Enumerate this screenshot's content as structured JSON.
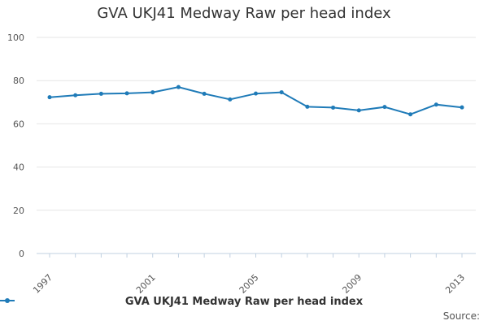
{
  "chart_data": {
    "type": "line",
    "title": "GVA UKJ41 Medway Raw per head index",
    "x": [
      1997,
      1998,
      1999,
      2000,
      2001,
      2002,
      2003,
      2004,
      2005,
      2006,
      2007,
      2008,
      2009,
      2010,
      2011,
      2012,
      2013
    ],
    "x_tick_labels": [
      "1997",
      "2001",
      "2005",
      "2009",
      "2013"
    ],
    "series": [
      {
        "name": "GVA UKJ41 Medway Raw per head index",
        "color": "#1f7bb8",
        "values": [
          72.3,
          73.2,
          73.9,
          74.1,
          74.6,
          77.0,
          73.9,
          71.3,
          74.0,
          74.6,
          67.9,
          67.5,
          66.2,
          67.8,
          64.4,
          68.9,
          67.6
        ]
      }
    ],
    "y_ticks": [
      0,
      20,
      40,
      60,
      80,
      100
    ],
    "ylim": [
      0,
      100
    ],
    "xlabel": "",
    "ylabel": "",
    "grid": true,
    "legend_position": "bottom-center"
  },
  "legend": {
    "label": "GVA UKJ41 Medway Raw per head index"
  },
  "footer": {
    "source": "Source:"
  }
}
